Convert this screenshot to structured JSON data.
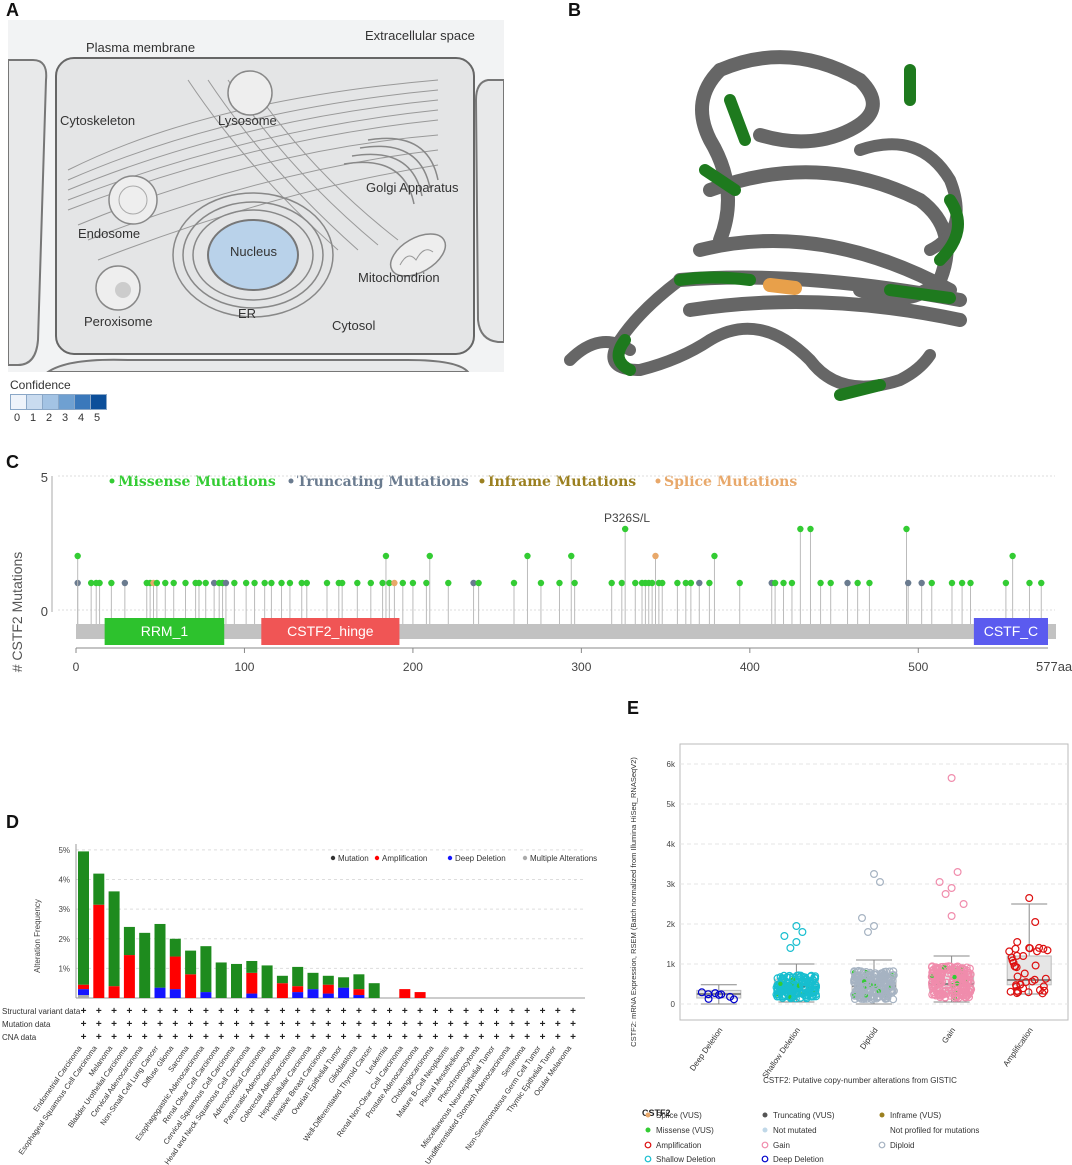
{
  "panels": {
    "a": "A",
    "b": "B",
    "c": "C",
    "d": "D",
    "e": "E"
  },
  "cell": {
    "labels": {
      "extracellular": "Extracellular space",
      "plasma": "Plasma membrane",
      "cytoskeleton": "Cytoskeleton",
      "lysosome": "Lysosome",
      "golgi": "Golgi Apparatus",
      "endosome": "Endosome",
      "nucleus": "Nucleus",
      "mitochondrion": "Mitochondrion",
      "peroxisome": "Peroxisome",
      "er": "ER",
      "cytosol": "Cytosol"
    },
    "confidence_title": "Confidence",
    "confidence_levels": [
      "0",
      "1",
      "2",
      "3",
      "4",
      "5"
    ],
    "confidence_colors": [
      "#eef3fa",
      "#c9dbef",
      "#a3c3e4",
      "#6fa0d1",
      "#3a78bb",
      "#0c4f9a"
    ],
    "nucleus_color": "#b9d2ea"
  },
  "chart_data": [
    {
      "type": "lollipop",
      "panel": "C",
      "legend": [
        "Missense Mutations",
        "Truncating Mutations",
        "Inframe Mutations",
        "Splice Mutations"
      ],
      "legend_colors": [
        "#33cc33",
        "#6a7b8f",
        "#9b8020",
        "#e8a86a"
      ],
      "ylabel": "# CSTF2 Mutations",
      "ylim": [
        0,
        5
      ],
      "y_ticks": [
        "0",
        "5"
      ],
      "x_ticks": [
        "0",
        "100",
        "200",
        "300",
        "400",
        "500"
      ],
      "x_end_label": "577aa",
      "protein_length": 577,
      "annotation": "P326S/L",
      "domains": [
        {
          "name": "RRM_1",
          "start": 17,
          "end": 88,
          "color": "#2dc22d"
        },
        {
          "name": "CSTF2_hinge",
          "start": 110,
          "end": 192,
          "color": "#f05555"
        },
        {
          "name": "CSTF_C",
          "start": 533,
          "end": 577,
          "color": "#5b5bef"
        }
      ],
      "mutations": [
        [
          1,
          1,
          "t"
        ],
        [
          1,
          2,
          "m"
        ],
        [
          9,
          1,
          "m"
        ],
        [
          12,
          1,
          "m"
        ],
        [
          14,
          1,
          "m"
        ],
        [
          21,
          1,
          "m"
        ],
        [
          29,
          1,
          "t"
        ],
        [
          42,
          1,
          "m"
        ],
        [
          44,
          1,
          "m"
        ],
        [
          46,
          1,
          "s"
        ],
        [
          48,
          1,
          "m"
        ],
        [
          53,
          1,
          "m"
        ],
        [
          58,
          1,
          "m"
        ],
        [
          65,
          1,
          "m"
        ],
        [
          71,
          1,
          "m"
        ],
        [
          73,
          1,
          "m"
        ],
        [
          77,
          1,
          "m"
        ],
        [
          82,
          1,
          "t"
        ],
        [
          85,
          1,
          "m"
        ],
        [
          87,
          1,
          "m"
        ],
        [
          89,
          1,
          "t"
        ],
        [
          94,
          1,
          "m"
        ],
        [
          101,
          1,
          "m"
        ],
        [
          106,
          1,
          "m"
        ],
        [
          112,
          1,
          "m"
        ],
        [
          116,
          1,
          "m"
        ],
        [
          122,
          1,
          "m"
        ],
        [
          127,
          1,
          "m"
        ],
        [
          134,
          1,
          "m"
        ],
        [
          137,
          1,
          "m"
        ],
        [
          149,
          1,
          "m"
        ],
        [
          156,
          1,
          "m"
        ],
        [
          158,
          1,
          "m"
        ],
        [
          167,
          1,
          "m"
        ],
        [
          175,
          1,
          "m"
        ],
        [
          182,
          1,
          "m"
        ],
        [
          184,
          2,
          "m"
        ],
        [
          186,
          1,
          "m"
        ],
        [
          189,
          1,
          "s"
        ],
        [
          194,
          1,
          "m"
        ],
        [
          200,
          1,
          "m"
        ],
        [
          208,
          1,
          "m"
        ],
        [
          210,
          2,
          "m"
        ],
        [
          221,
          1,
          "m"
        ],
        [
          236,
          1,
          "t"
        ],
        [
          239,
          1,
          "m"
        ],
        [
          260,
          1,
          "m"
        ],
        [
          268,
          2,
          "m"
        ],
        [
          276,
          1,
          "m"
        ],
        [
          287,
          1,
          "m"
        ],
        [
          294,
          2,
          "m"
        ],
        [
          296,
          1,
          "m"
        ],
        [
          318,
          1,
          "m"
        ],
        [
          324,
          1,
          "m"
        ],
        [
          326,
          3,
          "m"
        ],
        [
          332,
          1,
          "m"
        ],
        [
          336,
          1,
          "m"
        ],
        [
          338,
          1,
          "m"
        ],
        [
          340,
          1,
          "m"
        ],
        [
          342,
          1,
          "m"
        ],
        [
          344,
          2,
          "s"
        ],
        [
          346,
          1,
          "m"
        ],
        [
          348,
          1,
          "m"
        ],
        [
          357,
          1,
          "m"
        ],
        [
          362,
          1,
          "m"
        ],
        [
          365,
          1,
          "m"
        ],
        [
          370,
          1,
          "t"
        ],
        [
          376,
          1,
          "m"
        ],
        [
          379,
          2,
          "m"
        ],
        [
          394,
          1,
          "m"
        ],
        [
          413,
          1,
          "t"
        ],
        [
          415,
          1,
          "m"
        ],
        [
          420,
          1,
          "m"
        ],
        [
          425,
          1,
          "m"
        ],
        [
          430,
          3,
          "m"
        ],
        [
          436,
          3,
          "m"
        ],
        [
          442,
          1,
          "m"
        ],
        [
          448,
          1,
          "m"
        ],
        [
          458,
          1,
          "t"
        ],
        [
          464,
          1,
          "m"
        ],
        [
          471,
          1,
          "m"
        ],
        [
          493,
          3,
          "m"
        ],
        [
          494,
          1,
          "t"
        ],
        [
          502,
          1,
          "t"
        ],
        [
          508,
          1,
          "m"
        ],
        [
          520,
          1,
          "m"
        ],
        [
          526,
          1,
          "m"
        ],
        [
          531,
          1,
          "m"
        ],
        [
          552,
          1,
          "m"
        ],
        [
          556,
          2,
          "m"
        ],
        [
          566,
          1,
          "m"
        ],
        [
          573,
          1,
          "m"
        ]
      ]
    },
    {
      "type": "bar",
      "panel": "D",
      "ylabel": "Alteration Frequency",
      "y_ticks": [
        "1%",
        "2%",
        "3%",
        "4%",
        "5%"
      ],
      "ylim": [
        0,
        5.2
      ],
      "legend": [
        "Mutation",
        "Amplification",
        "Deep Deletion",
        "Multiple Alterations"
      ],
      "legend_colors": [
        "#1e8b1e",
        "#ff0000",
        "#1414ff",
        "#aaaaaa"
      ],
      "row_labels": [
        "Structural variant data",
        "Mutation data",
        "CNA data"
      ],
      "categories": [
        "Endometrial Carcinoma",
        "Esophageal Squamous Cell Carcinoma",
        "Melanoma",
        "Bladder Urothelial Carcinoma",
        "Cervical Adenocarcinoma",
        "Non-Small Cell Lung Cancer",
        "Diffuse Glioma",
        "Sarcoma",
        "Esophagogastric Adenocarcinoma",
        "Renal Clear Cell Carcinoma",
        "Cervical Squamous Cell Carcinoma",
        "Head and Neck Squamous Cell Carcinoma",
        "Adrenocortical Carcinoma",
        "Pancreatic Adenocarcinoma",
        "Colorectal Adenocarcinoma",
        "Hepatocellular Carcinoma",
        "Invasive Breast Carcinoma",
        "Ovarian Epithelial Tumor",
        "Glioblastoma",
        "Well-Differentiated Thyroid Cancer",
        "Leukemia",
        "Renal Non-Clear Cell Carcinoma",
        "Prostate Adenocarcinoma",
        "Cholangiocarcinoma",
        "Mature B-Cell Neoplasms",
        "Pleural Mesothelioma",
        "Pheochromocytoma",
        "Miscellaneous Neuroepithelial Tumor",
        "Undifferentiated Stomach Adenocarcinoma",
        "Seminoma",
        "Non-Seminomatous Germ Cell Tumor",
        "Thymic Epithelial Tumor",
        "Ocular Melanoma"
      ],
      "series": [
        {
          "name": "Mutation",
          "values": [
            4.5,
            1.05,
            3.2,
            0.95,
            2.2,
            2.15,
            0.6,
            0.8,
            1.55,
            1.2,
            1.15,
            0.4,
            1.1,
            0.25,
            0.65,
            0.55,
            0.3,
            0.35,
            0.5,
            0.5,
            0,
            0,
            0,
            0,
            0,
            0,
            0,
            0,
            0,
            0,
            0,
            0,
            0
          ]
        },
        {
          "name": "Amplification",
          "values": [
            0.15,
            3.15,
            0.4,
            1.45,
            0,
            0,
            1.1,
            0.8,
            0,
            0,
            0,
            0.7,
            0,
            0.5,
            0.2,
            0,
            0.3,
            0,
            0.2,
            0,
            0,
            0.3,
            0.2,
            0,
            0,
            0,
            0,
            0,
            0,
            0,
            0,
            0,
            0
          ]
        },
        {
          "name": "Deep Deletion",
          "values": [
            0.2,
            0,
            0,
            0,
            0,
            0.35,
            0.3,
            0,
            0.2,
            0,
            0,
            0.15,
            0,
            0,
            0.2,
            0.3,
            0.15,
            0.35,
            0.1,
            0,
            0,
            0,
            0,
            0,
            0,
            0,
            0,
            0,
            0,
            0,
            0,
            0,
            0
          ]
        },
        {
          "name": "Multiple Alterations",
          "values": [
            0.1,
            0,
            0,
            0,
            0,
            0,
            0,
            0,
            0,
            0,
            0,
            0,
            0,
            0,
            0,
            0,
            0,
            0,
            0,
            0,
            0,
            0,
            0,
            0,
            0,
            0,
            0,
            0,
            0,
            0,
            0,
            0,
            0
          ]
        }
      ]
    },
    {
      "type": "scatter",
      "panel": "E",
      "ylabel": "CSTF2: mRNA Expression, RSEM (Batch normalized from Illumina HiSeq_RNASeqV2)",
      "xlabel": "CSTF2: Putative copy-number alterations from GISTIC",
      "y_ticks": [
        "0",
        "1k",
        "2k",
        "3k",
        "4k",
        "5k",
        "6k"
      ],
      "ylim": [
        -400,
        6500
      ],
      "categories": [
        "Deep Deletion",
        "Shallow Deletion",
        "Diploid",
        "Gain",
        "Amplification"
      ],
      "category_colors": [
        "#0000cc",
        "#17becf",
        "#a6b3c2",
        "#f08cac",
        "#dd1010"
      ],
      "boxes": [
        {
          "min": 0,
          "q1": 150,
          "median": 250,
          "q3": 340,
          "max": 480
        },
        {
          "min": 50,
          "q1": 250,
          "median": 430,
          "q3": 620,
          "max": 1000
        },
        {
          "min": 0,
          "q1": 250,
          "median": 450,
          "q3": 700,
          "max": 1100
        },
        {
          "min": 50,
          "q1": 300,
          "median": 500,
          "q3": 800,
          "max": 1200
        },
        {
          "min": 250,
          "q1": 480,
          "median": 600,
          "q3": 1200,
          "max": 2500
        }
      ],
      "outliers": [
        {
          "cat": 1,
          "values": [
            1950,
            1800,
            1700,
            1550,
            1400
          ]
        },
        {
          "cat": 2,
          "values": [
            3250,
            3050,
            2150,
            1950,
            1800
          ]
        },
        {
          "cat": 3,
          "values": [
            5650,
            3300,
            3050,
            2900,
            2750,
            2500,
            2200
          ]
        },
        {
          "cat": 4,
          "values": [
            2650,
            2050,
            1550,
            1400,
            1200
          ]
        }
      ],
      "legend_title": "CSTF2",
      "legend": [
        {
          "label": "Splice (VUS)",
          "color": "#e8a86a",
          "style": "dot"
        },
        {
          "label": "Truncating (VUS)",
          "color": "#555555",
          "style": "dot"
        },
        {
          "label": "Inframe (VUS)",
          "color": "#9b8020",
          "style": "dot"
        },
        {
          "label": "Missense (VUS)",
          "color": "#33cc33",
          "style": "dot"
        },
        {
          "label": "Not mutated",
          "color": "#c0d8e8",
          "style": "dot"
        },
        {
          "label": "Not profiled for mutations",
          "color": "#ffffff",
          "style": "none"
        },
        {
          "label": "Amplification",
          "color": "#dd1010",
          "style": "ring"
        },
        {
          "label": "Gain",
          "color": "#f08cac",
          "style": "ring"
        },
        {
          "label": "Diploid",
          "color": "#a6b3c2",
          "style": "ring"
        },
        {
          "label": "Shallow Deletion",
          "color": "#17becf",
          "style": "ring"
        },
        {
          "label": "Deep Deletion",
          "color": "#0000cc",
          "style": "ring"
        }
      ]
    }
  ]
}
